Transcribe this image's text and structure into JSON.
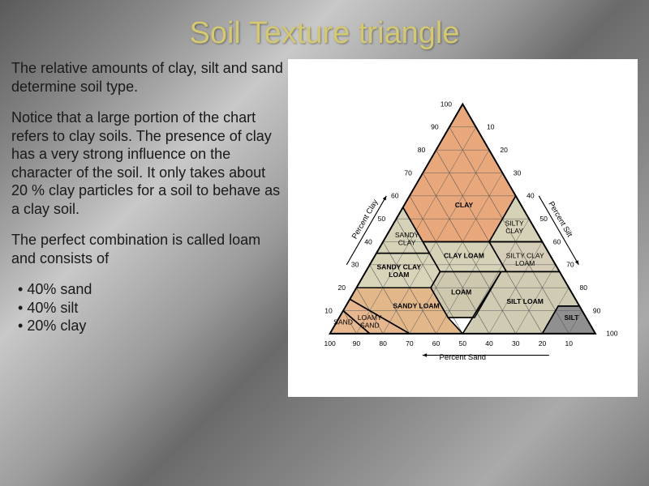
{
  "title": "Soil Texture triangle",
  "paragraphs": {
    "p1": "The relative amounts of clay, silt and sand determine soil type.",
    "p2": "Notice that a large portion of the chart refers to clay soils. The presence of clay has a very strong influence on the character of the soil.  It only takes about 20 % clay particles for a soil to behave as a clay soil.",
    "p3": "The perfect combination is called loam and consists of"
  },
  "bullets": {
    "b1": "40% sand",
    "b2": "40% silt",
    "b3": "20% clay"
  },
  "triangle": {
    "type": "ternary-diagram",
    "axes": {
      "left": {
        "label": "Percent Clay",
        "ticks": [
          10,
          20,
          30,
          40,
          50,
          60,
          70,
          80,
          90,
          100
        ]
      },
      "right": {
        "label": "Percent Silt",
        "ticks": [
          10,
          20,
          30,
          40,
          50,
          60,
          70,
          80,
          90,
          100
        ]
      },
      "bottom": {
        "label": "Percent Sand",
        "ticks": [
          10,
          20,
          30,
          40,
          50,
          60,
          70,
          80,
          90,
          100
        ]
      }
    },
    "regions": [
      {
        "name": "CLAY",
        "label": "CLAY",
        "color": "#e8a87c",
        "label_bold": true
      },
      {
        "name": "SANDY_CLAY",
        "label": "SANDY\nCLAY",
        "color": "#d6d2b8"
      },
      {
        "name": "SILTY_CLAY",
        "label": "SILTY\nCLAY",
        "color": "#d6d2b8"
      },
      {
        "name": "CLAY_LOAM",
        "label": "CLAY LOAM",
        "color": "#d6d2b8",
        "label_bold": true
      },
      {
        "name": "SANDY_CLAY_LOAM",
        "label": "SANDY CLAY\nLOAM",
        "color": "#d8d4ba",
        "label_bold": true
      },
      {
        "name": "SILTY_CLAY_LOAM",
        "label": "SILTY CLAY\nLOAM",
        "color": "#d6cdb8"
      },
      {
        "name": "SANDY_LOAM",
        "label": "SANDY LOAM",
        "color": "#e2b88a",
        "label_bold": true
      },
      {
        "name": "LOAM",
        "label": "LOAM",
        "color": "#cdc8ae",
        "label_bold": true
      },
      {
        "name": "SILT_LOAM",
        "label": "SILT LOAM",
        "color": "#d0ccb4",
        "label_bold": true
      },
      {
        "name": "SAND",
        "label": "SAND",
        "color": "#e8b890"
      },
      {
        "name": "LOAMY_SAND",
        "label": "LOAMY\nSAND",
        "color": "#e6b68e"
      },
      {
        "name": "SILT",
        "label": "SILT",
        "color": "#909090",
        "label_bold": true
      }
    ],
    "grid_color": "#555555",
    "border_color": "#000000",
    "text_color": "#000000",
    "background_color": "#ffffff",
    "tick_fontsize": 9,
    "region_label_fontsize": 9,
    "axis_label_fontsize": 10
  },
  "colors": {
    "title_color": "#d4c870",
    "body_text": "#1a1a1a",
    "slide_bg_gradient": [
      "#5a5a5a",
      "#c8c8c8",
      "#6a6a6a",
      "#aaaaaa"
    ]
  },
  "typography": {
    "title_fontsize": 38,
    "body_fontsize": 18,
    "font_family": "Arial"
  }
}
